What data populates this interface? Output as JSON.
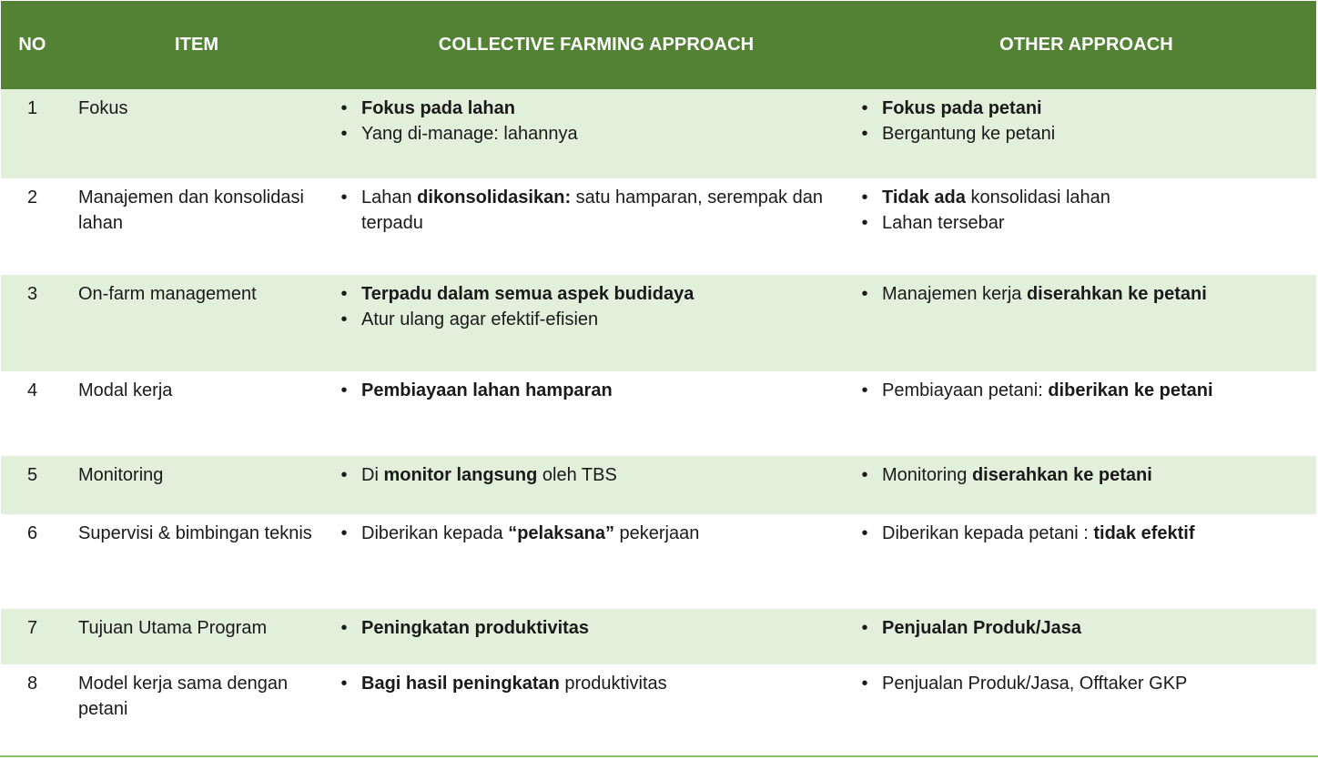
{
  "header": {
    "no": "NO",
    "item": "ITEM",
    "collective": "COLLECTIVE FARMING APPROACH",
    "other": "OTHER APPROACH"
  },
  "colors": {
    "header_bg": "#548235",
    "row_shaded": "#e2efda",
    "bottom_rule": "#8cc165"
  },
  "rows": [
    {
      "no": "1",
      "item": "Fokus",
      "collective": [
        [
          {
            "t": "Fokus pada lahan",
            "b": true
          }
        ],
        [
          {
            "t": "Yang di-manage: lahannya",
            "b": false
          }
        ]
      ],
      "other": [
        [
          {
            "t": "Fokus pada petani",
            "b": true
          }
        ],
        [
          {
            "t": "Bergantung ke petani",
            "b": false
          }
        ]
      ]
    },
    {
      "no": "2",
      "item": "Manajemen dan konsolidasi lahan",
      "collective": [
        [
          {
            "t": "Lahan ",
            "b": false
          },
          {
            "t": "dikonsolidasikan:",
            "b": true
          },
          {
            "t": " satu hamparan, serempak dan terpadu",
            "b": false
          }
        ]
      ],
      "other": [
        [
          {
            "t": "Tidak ada",
            "b": true
          },
          {
            "t": " konsolidasi lahan",
            "b": false
          }
        ],
        [
          {
            "t": "Lahan tersebar",
            "b": false
          }
        ]
      ]
    },
    {
      "no": "3",
      "item": "On-farm management",
      "collective": [
        [
          {
            "t": "Terpadu dalam semua aspek budidaya",
            "b": true
          }
        ],
        [
          {
            "t": "Atur ulang agar efektif-efisien",
            "b": false
          }
        ]
      ],
      "other": [
        [
          {
            "t": "Manajemen kerja ",
            "b": false
          },
          {
            "t": "diserahkan ke petani",
            "b": true
          }
        ]
      ]
    },
    {
      "no": "4",
      "item": "Modal kerja",
      "collective": [
        [
          {
            "t": "Pembiayaan lahan hamparan",
            "b": true
          }
        ]
      ],
      "other": [
        [
          {
            "t": "Pembiayaan petani: ",
            "b": false
          },
          {
            "t": "diberikan ke petani",
            "b": true
          }
        ]
      ]
    },
    {
      "no": "5",
      "item": "Monitoring",
      "collective": [
        [
          {
            "t": "Di ",
            "b": false
          },
          {
            "t": "monitor langsung",
            "b": true
          },
          {
            "t": " oleh TBS",
            "b": false
          }
        ]
      ],
      "other": [
        [
          {
            "t": "Monitoring ",
            "b": false
          },
          {
            "t": "diserahkan ke petani",
            "b": true
          }
        ]
      ]
    },
    {
      "no": "6",
      "item": "Supervisi & bimbingan teknis",
      "collective": [
        [
          {
            "t": "Diberikan kepada ",
            "b": false
          },
          {
            "t": "“pelaksana”",
            "b": true
          },
          {
            "t": " pekerjaan",
            "b": false
          }
        ]
      ],
      "other": [
        [
          {
            "t": "Diberikan kepada petani : ",
            "b": false
          },
          {
            "t": "tidak efektif",
            "b": true
          }
        ]
      ]
    },
    {
      "no": "7",
      "item": "Tujuan Utama Program",
      "collective": [
        [
          {
            "t": "Peningkatan produktivitas",
            "b": true
          }
        ]
      ],
      "other": [
        [
          {
            "t": "Penjualan Produk/Jasa",
            "b": true
          }
        ]
      ]
    },
    {
      "no": "8",
      "item": "Model kerja sama dengan petani",
      "collective": [
        [
          {
            "t": "Bagi hasil peningkatan",
            "b": true
          },
          {
            "t": " produktivitas",
            "b": false
          }
        ]
      ],
      "other": [
        [
          {
            "t": "Penjualan Produk/Jasa, Offtaker GKP",
            "b": false
          }
        ]
      ]
    }
  ]
}
